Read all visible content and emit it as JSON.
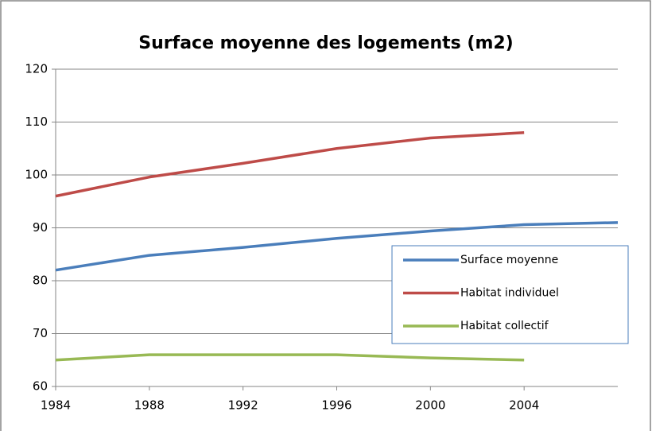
{
  "chart_data": {
    "type": "line",
    "title": "Surface moyenne des logements (m2)",
    "x": [
      1984,
      1988,
      1992,
      1996,
      2000,
      2004,
      2008
    ],
    "series": [
      {
        "name": "Surface moyenne",
        "color": "#4a7ebb",
        "values": [
          82,
          84.8,
          86.3,
          88,
          89.4,
          90.6,
          91
        ]
      },
      {
        "name": "Habitat individuel",
        "color": "#be4b48",
        "values": [
          96,
          99.6,
          102.2,
          105,
          107,
          108,
          null
        ]
      },
      {
        "name": "Habitat collectif",
        "color": "#98b954",
        "values": [
          65,
          66,
          66,
          66,
          65.4,
          65,
          null
        ]
      }
    ],
    "xlim": [
      1984,
      2008
    ],
    "xticks": [
      1984,
      1988,
      1992,
      1996,
      2000,
      2004
    ],
    "ylim": [
      60,
      120
    ],
    "yticks": [
      60,
      70,
      80,
      90,
      100,
      110,
      120
    ],
    "grid": true,
    "legend": "right"
  }
}
